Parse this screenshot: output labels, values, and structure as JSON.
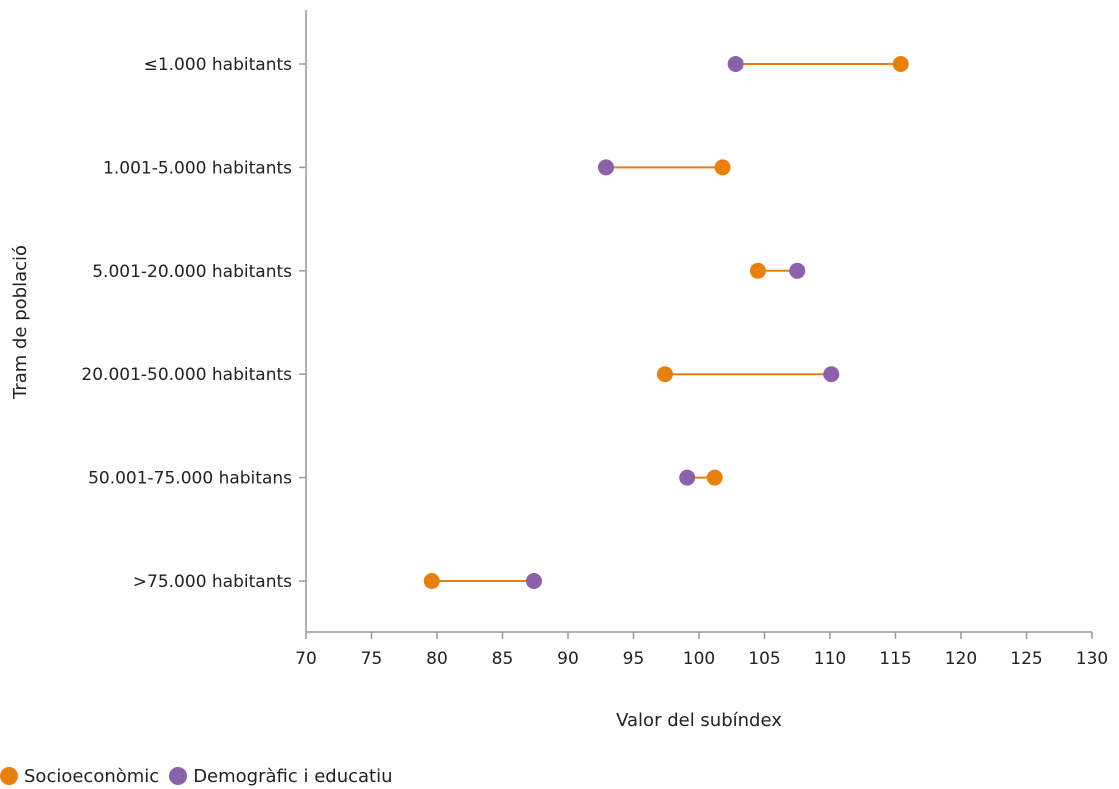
{
  "chart_data": {
    "type": "dumbbell",
    "categories": [
      "≤1.000 habitants",
      "1.001-5.000 habitants",
      "5.001-20.000 habitants",
      "20.001-50.000 habitants",
      "50.001-75.000 habitans",
      ">75.000 habitants"
    ],
    "series": [
      {
        "name": "Socioeconòmic",
        "color": "#e8800e",
        "values": [
          115.4,
          101.8,
          104.5,
          97.4,
          101.2,
          79.6
        ]
      },
      {
        "name": "Demogràfic i educatiu",
        "color": "#8b62a8",
        "values": [
          102.8,
          92.9,
          107.5,
          110.1,
          99.1,
          87.4
        ]
      }
    ],
    "connector_color": "#e8800e",
    "xlabel": "Valor del subíndex",
    "ylabel": "Tram de població",
    "xlim": [
      70,
      130
    ],
    "xticks": [
      70,
      75,
      80,
      85,
      90,
      95,
      100,
      105,
      110,
      115,
      120,
      125,
      130
    ],
    "legend_position": "bottom-left",
    "grid": false
  }
}
